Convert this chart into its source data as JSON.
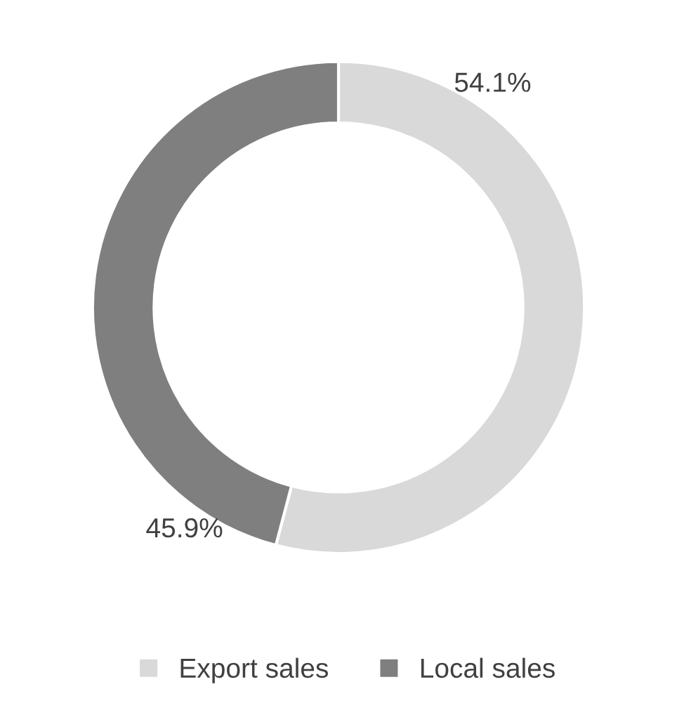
{
  "chart_data": {
    "type": "donut",
    "categories": [
      "Export sales",
      "Local sales"
    ],
    "values": [
      54.1,
      45.9
    ],
    "value_labels": [
      "54.1%",
      "45.9%"
    ],
    "colors": [
      "#d9d9d9",
      "#7f7f7f"
    ],
    "legend": "bottom"
  }
}
